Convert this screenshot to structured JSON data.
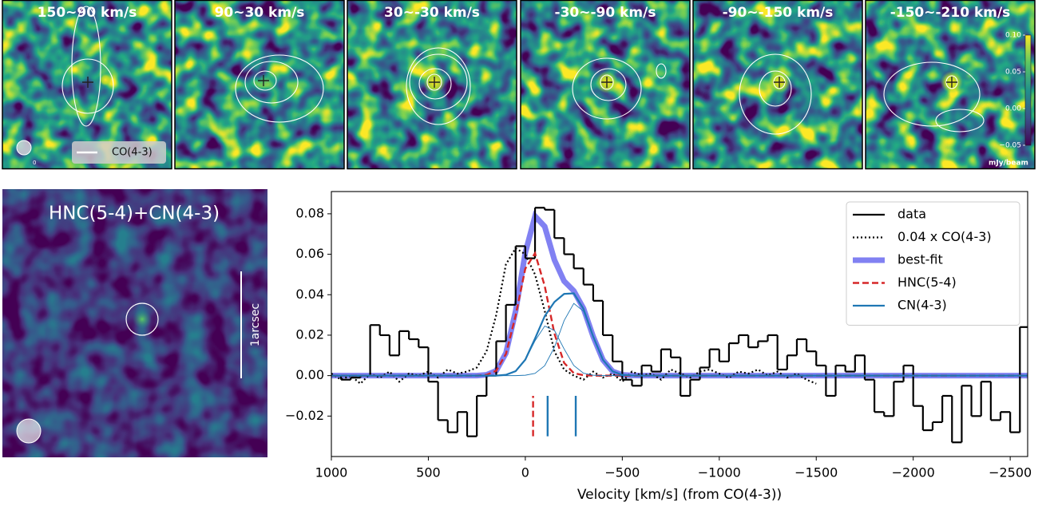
{
  "maps": {
    "panels": [
      {
        "title": "150~90 km/s"
      },
      {
        "title": "90~30 km/s"
      },
      {
        "title": "30~-30 km/s"
      },
      {
        "title": "-30~-90 km/s"
      },
      {
        "title": "-90~-150 km/s"
      },
      {
        "title": "-150~-210 km/s"
      }
    ],
    "legend_label": "CO(4-3)",
    "beam_label": "0",
    "colorbar": {
      "lim": [
        -0.05,
        0.1
      ],
      "ticks": [
        {
          "value": 0.1,
          "label": "0.10"
        },
        0.05,
        {
          "value": 0,
          "label": "0.00"
        },
        {
          "value": -0.05,
          "label": "−0.05"
        }
      ],
      "label": "mJy/beam"
    }
  },
  "moment_map": {
    "title": "HNC(5-4)+CN(4-3)",
    "scale_label": "1arcsec"
  },
  "chart_data": {
    "type": "line",
    "xlabel": "Velocity [km/s] (from CO(4-3))",
    "xlim": [
      1000,
      -2590
    ],
    "ylim": [
      -0.04,
      0.091
    ],
    "xticks": [
      1000,
      500,
      0,
      {
        "value": -500,
        "label": "−500"
      },
      {
        "value": -1000,
        "label": "−1000"
      },
      {
        "value": -1500,
        "label": "−1500"
      },
      {
        "value": -2000,
        "label": "−2000"
      },
      {
        "value": -2500,
        "label": "−2500"
      }
    ],
    "yticks": [
      {
        "value": -0.02,
        "label": "−0.02"
      },
      {
        "value": 0,
        "label": "0.00"
      },
      0.02,
      0.04,
      0.06,
      0.08
    ],
    "legend": "upper right",
    "series": [
      {
        "name": "data",
        "color": "#000000",
        "linestyle": "solid",
        "linewidth": 2.2,
        "bins": [
          1000,
          950,
          900,
          850,
          800,
          750,
          700,
          650,
          600,
          550,
          500,
          450,
          400,
          350,
          300,
          250,
          200,
          150,
          100,
          50,
          0,
          -50,
          -100,
          -150,
          -200,
          -250,
          -300,
          -350,
          -400,
          -450,
          -500,
          -550,
          -600,
          -650,
          -700,
          -750,
          -800,
          -850,
          -900,
          -950,
          -1000,
          -1050,
          -1100,
          -1150,
          -1200,
          -1250,
          -1300,
          -1350,
          -1400,
          -1450,
          -1500,
          -1550,
          -1600,
          -1650,
          -1700,
          -1750,
          -1800,
          -1850,
          -1900,
          -1950,
          -2000,
          -2050,
          -2100,
          -2150,
          -2200,
          -2250,
          -2300,
          -2350,
          -2400,
          -2450,
          -2500,
          -2550,
          -2600
        ],
        "values": [
          0,
          -0.002,
          -0.001,
          0,
          0.025,
          0.02,
          0.01,
          0.022,
          0.018,
          0.014,
          -0.003,
          -0.022,
          -0.028,
          -0.018,
          -0.03,
          -0.01,
          0,
          0.017,
          0.035,
          0.064,
          0.058,
          0.083,
          0.082,
          0.068,
          0.06,
          0.053,
          0.045,
          0.037,
          0.02,
          0.007,
          -0.002,
          -0.005,
          0.005,
          0.002,
          0.013,
          0.009,
          -0.01,
          -0.002,
          0.004,
          0.013,
          0.007,
          0.016,
          0.02,
          0.014,
          0.017,
          0.02,
          0.003,
          0.01,
          0.018,
          0.012,
          0.005,
          -0.01,
          0.005,
          0.002,
          0.01,
          -0.002,
          -0.018,
          -0.02,
          -0.003,
          0.005,
          -0.015,
          -0.027,
          -0.023,
          -0.01,
          -0.033,
          -0.005,
          -0.02,
          -0.003,
          -0.022,
          -0.018,
          -0.028,
          0.024
        ]
      },
      {
        "name": "0.04 x CO(4-3)",
        "color": "#000000",
        "linestyle": "dotted",
        "linewidth": 2.2,
        "x": [
          1000,
          950,
          900,
          850,
          800,
          750,
          700,
          650,
          600,
          550,
          500,
          450,
          400,
          350,
          300,
          250,
          200,
          150,
          100,
          50,
          0,
          -50,
          -100,
          -150,
          -200,
          -250,
          -300,
          -350,
          -400,
          -450,
          -500,
          -550,
          -600,
          -650,
          -700,
          -750,
          -800,
          -850,
          -900,
          -950,
          -1000,
          -1050,
          -1100,
          -1150,
          -1200,
          -1250,
          -1300,
          -1350,
          -1400,
          -1450,
          -1500
        ],
        "values": [
          0.001,
          -0.002,
          0,
          -0.004,
          0.001,
          -0.001,
          0.002,
          -0.003,
          0.001,
          0,
          0.002,
          -0.001,
          0.003,
          0.001,
          0.002,
          0.004,
          0.012,
          0.03,
          0.055,
          0.063,
          0.06,
          0.05,
          0.032,
          0.012,
          0.003,
          0,
          -0.002,
          0.002,
          -0.001,
          0.001,
          -0.003,
          0.002,
          0,
          0.001,
          -0.002,
          0.003,
          0.001,
          -0.001,
          0.002,
          0.003,
          0.001,
          -0.001,
          0.002,
          0.001,
          0.003,
          0,
          0.002,
          -0.001,
          0.001,
          -0.002,
          -0.004
        ]
      },
      {
        "name": "best-fit",
        "color": "#6b6bf0",
        "linestyle": "solid",
        "linewidth": 7,
        "opacity": 0.85,
        "x": [
          1000,
          300,
          250,
          200,
          150,
          100,
          50,
          0,
          -50,
          -100,
          -150,
          -200,
          -250,
          -300,
          -350,
          -400,
          -450,
          -500,
          -550,
          -600,
          -2600
        ],
        "values": [
          0,
          0,
          0,
          0.0004,
          0.0024,
          0.0111,
          0.0319,
          0.0608,
          0.0788,
          0.0737,
          0.0572,
          0.0467,
          0.0419,
          0.0332,
          0.0193,
          0.0078,
          0.0021,
          0.0004,
          0.0001,
          0,
          0
        ]
      },
      {
        "name": "HNC(5-4)",
        "color": "#d62728",
        "linestyle": "dashed",
        "linewidth": 2.4,
        "x": [
          1000,
          300,
          250,
          200,
          150,
          100,
          50,
          0,
          -50,
          -100,
          -150,
          -200,
          -250,
          -300,
          -350,
          -400,
          -450,
          -500,
          -550,
          -600,
          -2600
        ],
        "values": [
          0,
          0,
          0,
          0.0004,
          0.0024,
          0.0107,
          0.0297,
          0.0529,
          0.0605,
          0.0443,
          0.0208,
          0.0063,
          0.0012,
          0.0002,
          0,
          0,
          0,
          0,
          0,
          0,
          0
        ]
      },
      {
        "name": "CN(4-3)",
        "color": "#1f77b4",
        "linestyle": "solid",
        "linewidth": 2.2,
        "x": [
          1000,
          300,
          250,
          200,
          150,
          100,
          50,
          0,
          -50,
          -100,
          -150,
          -200,
          -250,
          -300,
          -350,
          -400,
          -450,
          -500,
          -550,
          -600,
          -2600
        ],
        "values": [
          0,
          0,
          0,
          0,
          0,
          0.0004,
          0.0022,
          0.0079,
          0.0183,
          0.0294,
          0.0364,
          0.0404,
          0.0407,
          0.033,
          0.0193,
          0.0078,
          0.0021,
          0.0004,
          0.0001,
          0,
          0
        ]
      },
      {
        "color": "#1f77b4",
        "linestyle": "solid",
        "linewidth": 0.9,
        "x": [
          1000,
          300,
          250,
          200,
          150,
          100,
          50,
          0,
          -50,
          -100,
          -150,
          -200,
          -250,
          -300,
          -350,
          -400,
          -450,
          -500,
          -550,
          -600,
          -2600
        ],
        "values": [
          0,
          0,
          0,
          0,
          0,
          0.0004,
          0.0022,
          0.0077,
          0.0172,
          0.0245,
          0.0224,
          0.0132,
          0.005,
          0.0012,
          0.0002,
          0,
          0,
          0,
          0,
          0,
          0
        ]
      },
      {
        "color": "#1f77b4",
        "linestyle": "solid",
        "linewidth": 0.9,
        "x": [
          1000,
          300,
          250,
          200,
          150,
          100,
          50,
          0,
          -50,
          -100,
          -150,
          -200,
          -250,
          -300,
          -350,
          -400,
          -450,
          -500,
          -550,
          -600,
          -2600
        ],
        "values": [
          0,
          0,
          0,
          0,
          0,
          0,
          0,
          0.0002,
          0.0011,
          0.0049,
          0.014,
          0.0272,
          0.0357,
          0.0318,
          0.0191,
          0.0078,
          0.0021,
          0.0004,
          0.0001,
          0,
          0
        ]
      }
    ],
    "marker_ylim": [
      -0.03,
      -0.01
    ],
    "component_markers": [
      {
        "x": -40,
        "color": "#d62728",
        "linestyle": "dashed"
      },
      {
        "x": -115,
        "color": "#1f77b4",
        "linestyle": "solid"
      },
      {
        "x": -260,
        "color": "#1f77b4",
        "linestyle": "solid"
      }
    ]
  }
}
